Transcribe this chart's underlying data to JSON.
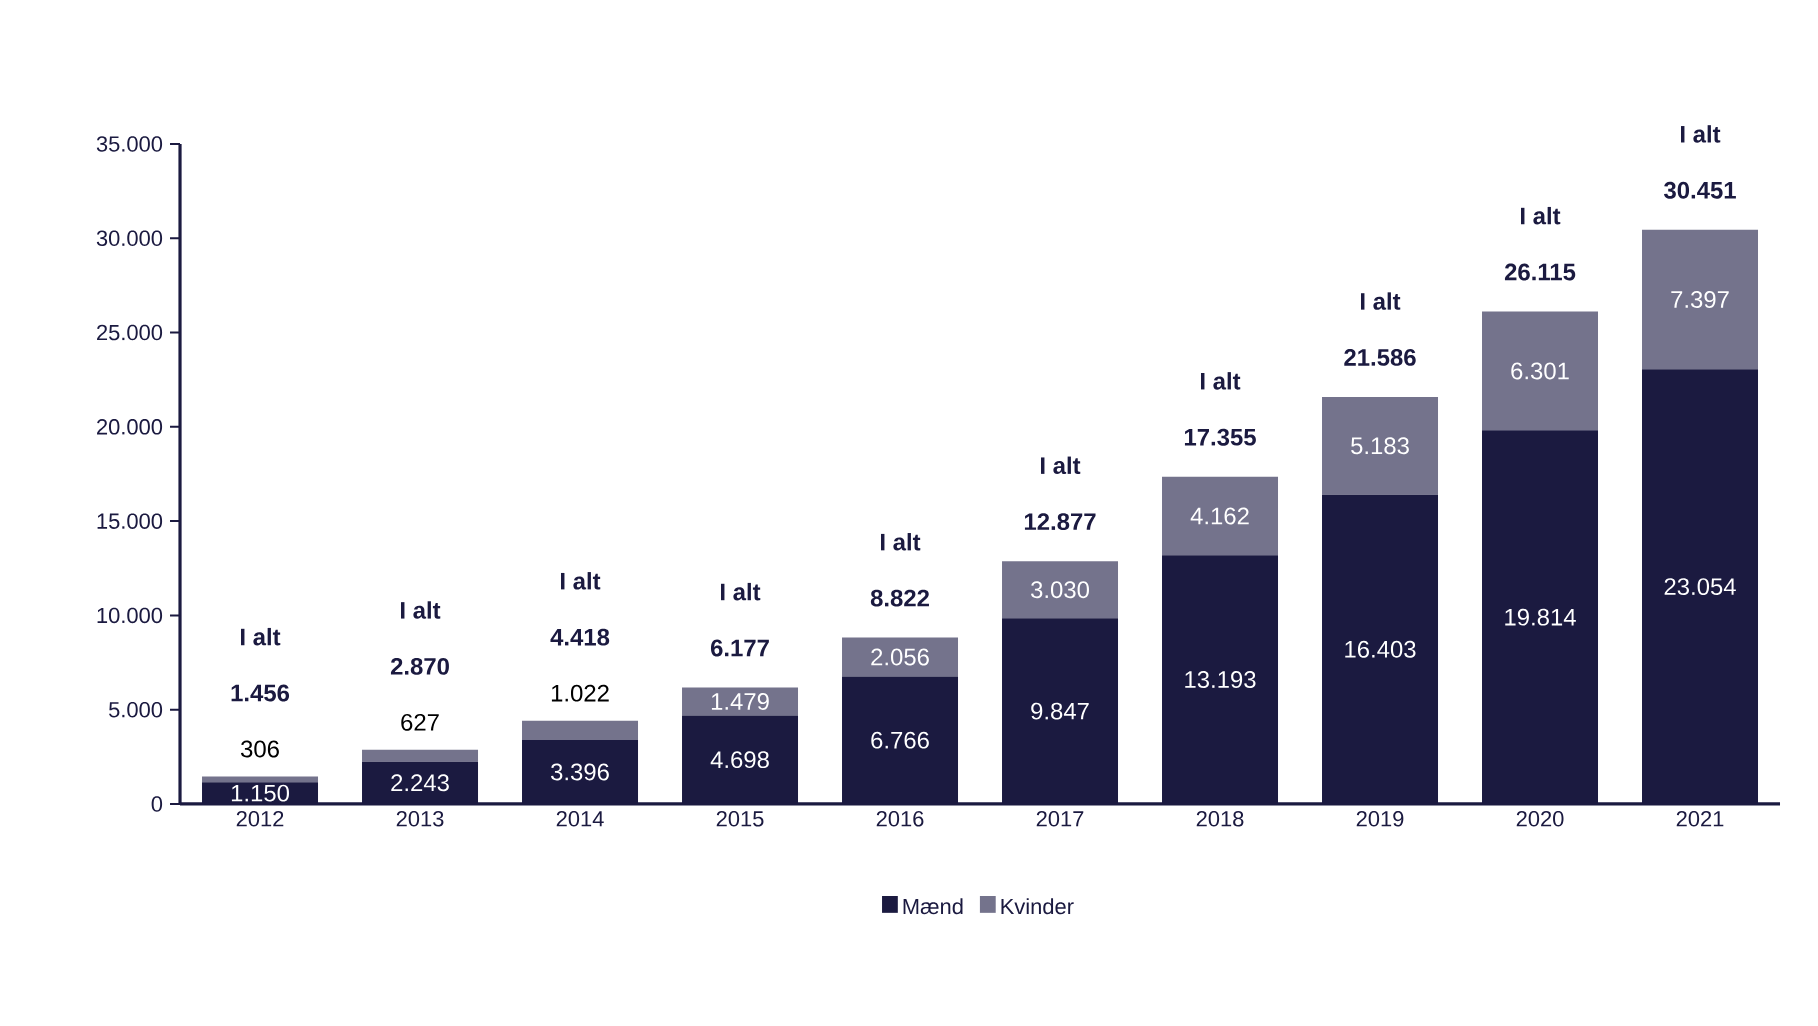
{
  "chart_data": {
    "type": "bar",
    "stacked": true,
    "categories": [
      "2012",
      "2013",
      "2014",
      "2015",
      "2016",
      "2017",
      "2018",
      "2019",
      "2020",
      "2021"
    ],
    "series": [
      {
        "name": "Mænd",
        "color": "#1b1a40",
        "values": [
          1150,
          2243,
          3396,
          4698,
          6766,
          9847,
          13193,
          16403,
          19814,
          23054
        ],
        "value_labels": [
          "1.150",
          "2.243",
          "3.396",
          "4.698",
          "6.766",
          "9.847",
          "13.193",
          "16.403",
          "19.814",
          "23.054"
        ]
      },
      {
        "name": "Kvinder",
        "color": "#74738c",
        "values": [
          306,
          627,
          1022,
          1479,
          2056,
          3030,
          4162,
          5183,
          6301,
          7397
        ],
        "value_labels": [
          "306",
          "627",
          "1.022",
          "1.479",
          "2.056",
          "3.030",
          "4.162",
          "5.183",
          "6.301",
          "7.397"
        ]
      }
    ],
    "totals": [
      "1.456",
      "2.870",
      "4.418",
      "6.177",
      "8.822",
      "12.877",
      "17.355",
      "21.586",
      "26.115",
      "30.451"
    ],
    "annotations": [
      "I alt",
      "I alt",
      "I alt",
      "I alt",
      "I alt",
      "I alt",
      "I alt",
      "I alt",
      "I alt",
      "I alt"
    ],
    "ylim": [
      0,
      35000
    ],
    "yticks": [
      {
        "value": 0,
        "label": "0"
      },
      {
        "value": 5000,
        "label": "5.000"
      },
      {
        "value": 10000,
        "label": "10.000"
      },
      {
        "value": 15000,
        "label": "15.000"
      },
      {
        "value": 20000,
        "label": "20.000"
      },
      {
        "value": 25000,
        "label": "25.000"
      },
      {
        "value": 30000,
        "label": "30.000"
      },
      {
        "value": 35000,
        "label": "35.000"
      }
    ],
    "legend": "bottom",
    "grid": false
  }
}
